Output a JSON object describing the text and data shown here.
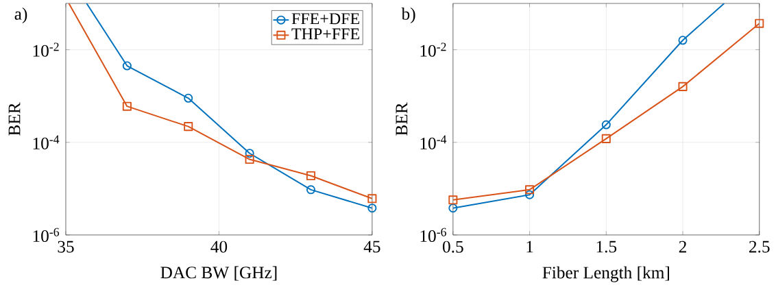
{
  "chart_data": [
    {
      "type": "line",
      "annotations": [
        "a)"
      ],
      "xlabel": "DAC BW [GHz]",
      "ylabel": "BER",
      "log": "y",
      "grid": true,
      "legend": "top right",
      "series": [
        {
          "name": "FFE+DFE",
          "color": "#0072bd",
          "marker": "circle",
          "x": [
            35.68,
            37,
            39,
            41,
            43,
            45
          ],
          "values": [
            0.1,
            0.0045,
            0.0009,
            5.8e-05,
            9.5e-06,
            3.8e-06
          ]
        },
        {
          "name": "THP+FFE",
          "color": "#d95319",
          "marker": "square",
          "x": [
            35.1,
            37,
            39,
            41,
            43,
            45
          ],
          "values": [
            0.1,
            0.0006,
            0.00022,
            4.3e-05,
            1.9e-05,
            6.1e-06
          ]
        }
      ],
      "xlim": [
        35,
        45
      ],
      "ylim": [
        1e-06,
        0.1
      ],
      "xticks": [
        35,
        40,
        45
      ],
      "yticks": [
        {
          "value": 1e-06,
          "label": "10$^{-6}$"
        },
        {
          "value": 0.0001,
          "label": "10$^{-4}$"
        },
        {
          "value": 0.01,
          "label": "10$^{-2}$"
        }
      ]
    },
    {
      "type": "line",
      "annotations": [
        "b)"
      ],
      "xlabel": "Fiber Length [km]",
      "ylabel": "BER",
      "log": "y",
      "grid": true,
      "x": [
        0.5,
        1,
        1.5,
        2,
        2.5
      ],
      "series": [
        {
          "color": "#0072bd",
          "marker": "circle",
          "x": [
            0.5,
            1,
            1.5,
            2,
            2.27
          ],
          "values": [
            3.8e-06,
            7.4e-06,
            0.00024,
            0.016,
            0.1
          ]
        },
        {
          "color": "#d95319",
          "marker": "square",
          "values": [
            5.7e-06,
            9.5e-06,
            0.00012,
            0.0016,
            0.037
          ]
        }
      ],
      "xlim": [
        0.5,
        2.5
      ],
      "ylim": [
        1e-06,
        0.1
      ],
      "xticks": [
        0.5,
        1,
        1.5,
        2,
        2.5
      ],
      "yticks": [
        {
          "value": 1e-06,
          "label": "10$^{-6}$"
        },
        {
          "value": 0.0001,
          "label": "10$^{-4}$"
        },
        {
          "value": 0.01,
          "label": "10$^{-2}$"
        }
      ]
    }
  ]
}
